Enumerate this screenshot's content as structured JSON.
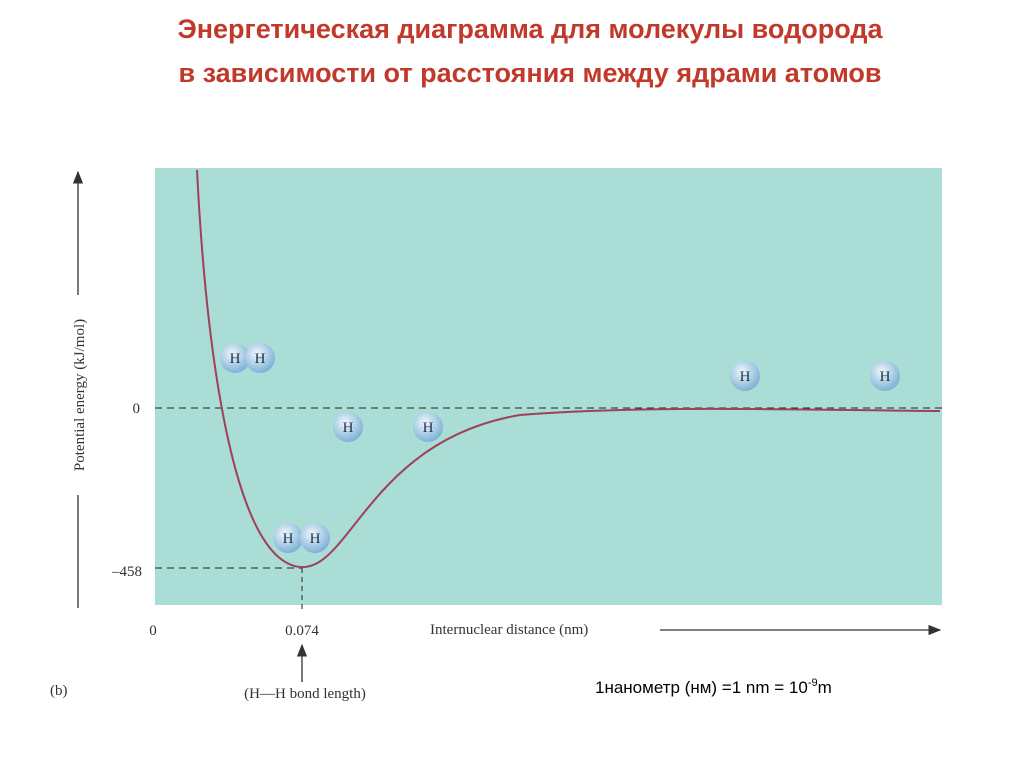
{
  "header": {
    "title": [
      "Энергетическая диаграмма для молекулы водорода",
      "в зависимости от расстояния между ядрами атомов"
    ]
  },
  "diagram": {
    "y_axis_label": "Potential energy (kJ/mol)",
    "y_labels": [
      "0",
      "–458"
    ],
    "x_labels": [
      "0",
      "0.074"
    ],
    "x_axis_label": "Internuclear distance (nm)",
    "bond_note": "(H—H bond length)",
    "panel_label": "(b)",
    "atoms": [
      "H",
      "H",
      "H",
      "H",
      "H",
      "H",
      "H",
      "H"
    ]
  },
  "note": {
    "text": "1нанометр (нм) =1 nm = 10",
    "exponent": "-9",
    "unit": "m"
  }
}
